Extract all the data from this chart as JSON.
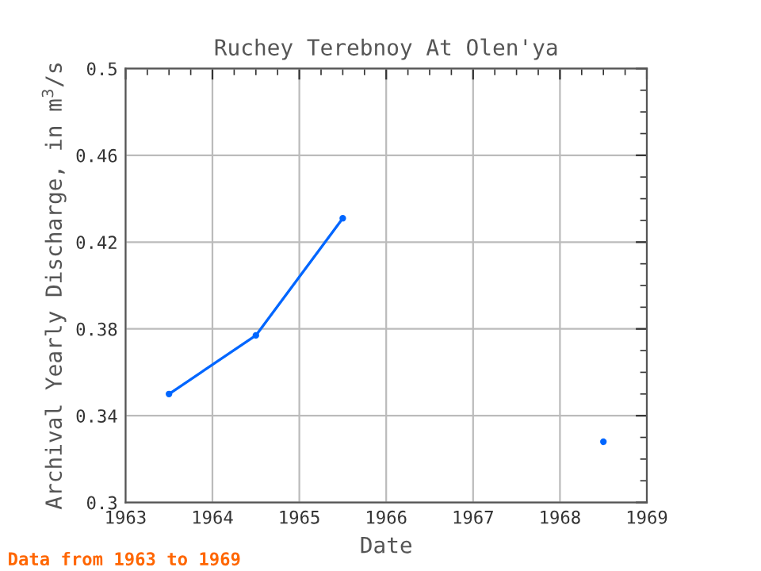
{
  "chart_data": {
    "type": "line",
    "title": "Ruchey Terebnoy At Olen'ya",
    "xlabel": "Date",
    "ylabel": "Archival Yearly Discharge, in m$^{3}$/s",
    "x": [
      1963.5,
      1964.5,
      1965.5,
      1966.5,
      1967.5,
      1968.5
    ],
    "series": [
      {
        "color": "#0066ff",
        "values": [
          0.35,
          0.377,
          0.431,
          null,
          null,
          0.328
        ]
      }
    ],
    "xlim": [
      1963,
      1969
    ],
    "xticks": [
      1963,
      1964,
      1965,
      1966,
      1967,
      1968,
      1969
    ],
    "ylim": [
      0.3,
      0.5
    ],
    "yticks": [
      0.3,
      0.34,
      0.38,
      0.42,
      0.46,
      0.5
    ],
    "grid": true,
    "marker": "circle",
    "line_style": "solid",
    "annotations": [
      "Data from 1963 to 1969"
    ]
  }
}
